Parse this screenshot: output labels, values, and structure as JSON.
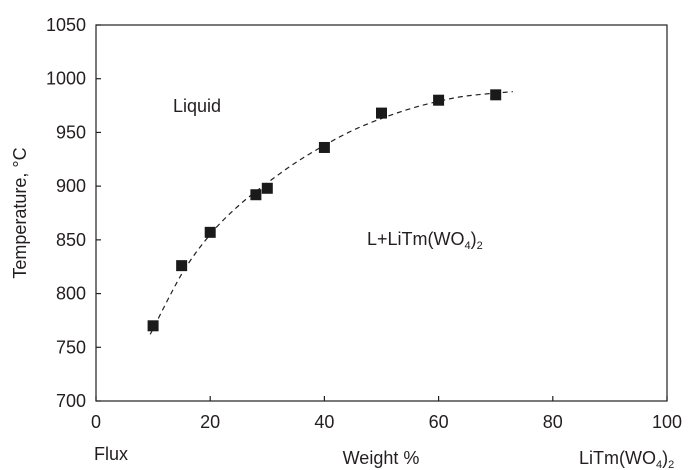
{
  "chart_data": {
    "type": "scatter",
    "title": "",
    "xlabel": "Weight %",
    "ylabel": "Temperature, °C",
    "xlim": [
      0,
      100
    ],
    "ylim": [
      700,
      1050
    ],
    "x_ticks": [
      0,
      20,
      40,
      60,
      80,
      100
    ],
    "y_ticks": [
      700,
      750,
      800,
      850,
      900,
      950,
      1000,
      1050
    ],
    "grid": false,
    "x_end_labels": {
      "left": "Flux",
      "right_main": "LiTm(WO",
      "right_sub": "4",
      "right_tail": ")",
      "right_sub2": "2"
    },
    "series": [
      {
        "marker": "square",
        "points": [
          {
            "x": 10,
            "y": 770
          },
          {
            "x": 15,
            "y": 826
          },
          {
            "x": 20,
            "y": 857
          },
          {
            "x": 28,
            "y": 892
          },
          {
            "x": 30,
            "y": 898
          },
          {
            "x": 40,
            "y": 936
          },
          {
            "x": 50,
            "y": 968
          },
          {
            "x": 60,
            "y": 980
          },
          {
            "x": 70,
            "y": 985
          }
        ]
      }
    ],
    "fit_curve": {
      "style": "dashed",
      "points": [
        {
          "x": 9.5,
          "y": 762
        },
        {
          "x": 15,
          "y": 818
        },
        {
          "x": 20,
          "y": 855
        },
        {
          "x": 25,
          "y": 882
        },
        {
          "x": 30,
          "y": 903
        },
        {
          "x": 35,
          "y": 922
        },
        {
          "x": 40,
          "y": 938
        },
        {
          "x": 45,
          "y": 952
        },
        {
          "x": 50,
          "y": 963
        },
        {
          "x": 55,
          "y": 972
        },
        {
          "x": 60,
          "y": 979
        },
        {
          "x": 65,
          "y": 984
        },
        {
          "x": 73,
          "y": 988
        }
      ]
    },
    "annotations": {
      "liquid": "Liquid",
      "region_main": "L+LiTm(WO",
      "region_sub": "4",
      "region_tail": ")",
      "region_sub2": "2"
    },
    "colors": {
      "ink": "#231f20",
      "marker": "#1a1a1a"
    }
  }
}
